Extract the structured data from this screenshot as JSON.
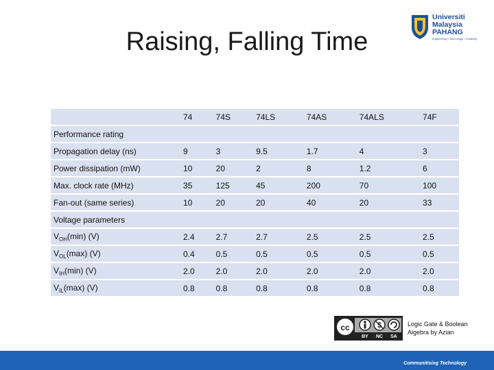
{
  "title": "Raising, Falling Time",
  "logo": {
    "line1": "Universiti",
    "line2": "Malaysia",
    "line3": "PAHANG",
    "tagline": "Engineering • Technology • Creativity"
  },
  "table": {
    "columns": [
      "74",
      "74S",
      "74LS",
      "74AS",
      "74ALS",
      "74F"
    ],
    "section1": "Performance rating",
    "perf_rows": [
      {
        "label": "Propagation delay (ns)",
        "values": [
          "9",
          "3",
          "9.5",
          "1.7",
          "4",
          "3"
        ]
      },
      {
        "label": "Power dissipation (mW)",
        "values": [
          "10",
          "20",
          "2",
          "8",
          "1.2",
          "6"
        ]
      },
      {
        "label": "Max. clock rate (MHz)",
        "values": [
          "35",
          "125",
          "45",
          "200",
          "70",
          "100"
        ]
      },
      {
        "label": "Fan-out (same series)",
        "values": [
          "10",
          "20",
          "20",
          "40",
          "20",
          "33"
        ]
      }
    ],
    "section2": "Voltage parameters",
    "volt_rows": [
      {
        "prefix": "V",
        "sub": "OH",
        "suffix": "(min) (V)",
        "values": [
          "2.4",
          "2.7",
          "2.7",
          "2.5",
          "2.5",
          "2.5"
        ]
      },
      {
        "prefix": "V",
        "sub": "OL",
        "suffix": "(max) (V)",
        "values": [
          "0.4",
          "0.5",
          "0.5",
          "0.5",
          "0.5",
          "0.5"
        ]
      },
      {
        "prefix": "V",
        "sub": "IH",
        "suffix": "(min) (V)",
        "values": [
          "2.0",
          "2.0",
          "2.0",
          "2.0",
          "2.0",
          "2.0"
        ]
      },
      {
        "prefix": "V",
        "sub": "IL",
        "suffix": "(max) (V)",
        "values": [
          "0.8",
          "0.8",
          "0.8",
          "0.8",
          "0.8",
          "0.8"
        ]
      }
    ]
  },
  "license": {
    "labels": [
      "BY",
      "NC",
      "SA"
    ]
  },
  "credit": {
    "line1": "Logic Gate & Boolean",
    "line2": "Algebra by Azian"
  },
  "footer": {
    "text": "Communitising Technology"
  },
  "colors": {
    "row": "#d9e1f0",
    "footer": "#1e63b6",
    "logo": "#1b4f9c"
  }
}
